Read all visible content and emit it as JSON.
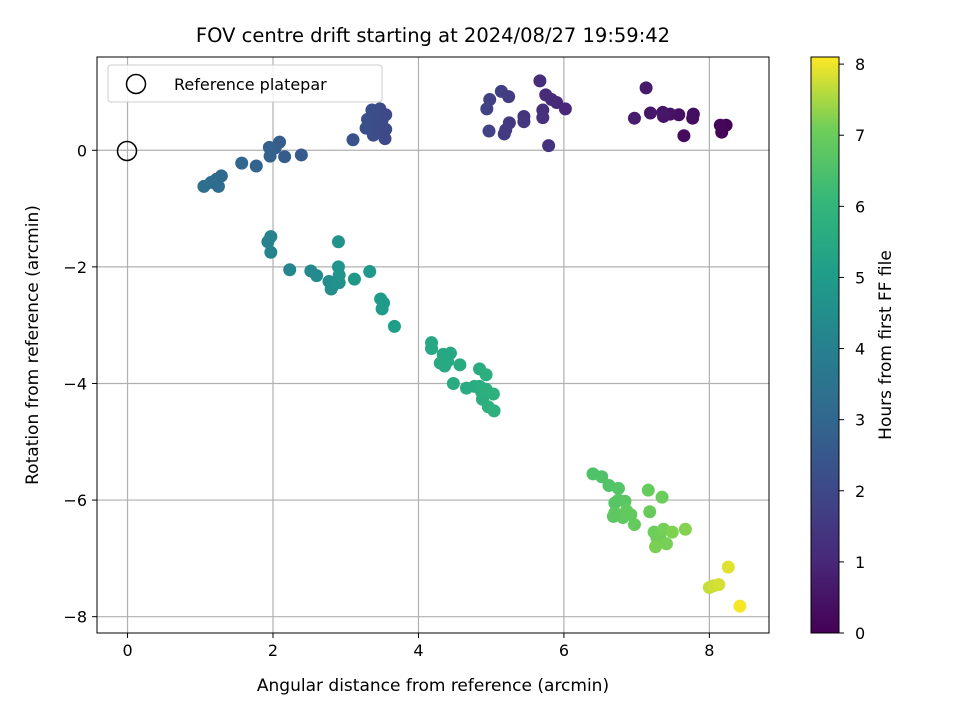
{
  "chart_data": {
    "type": "scatter",
    "title": "FOV centre drift starting at 2024/08/27 19:59:42",
    "xlabel": "Angular distance from reference (arcmin)",
    "ylabel": "Rotation from reference (arcmin)",
    "xlim": [
      -0.42,
      8.82
    ],
    "ylim": [
      -8.28,
      1.6
    ],
    "xticks": [
      0,
      2,
      4,
      6,
      8
    ],
    "yticks": [
      -8,
      -6,
      -4,
      -2,
      0
    ],
    "grid": true,
    "legend": {
      "placement": "top-left",
      "entries": [
        "Reference platepar"
      ]
    },
    "reference": {
      "x": 0,
      "y": 0
    },
    "colorbar": {
      "label": "Hours from first FF file",
      "colormap": "viridis",
      "range": [
        0,
        8.1
      ],
      "ticks": [
        0,
        1,
        2,
        3,
        4,
        5,
        6,
        7,
        8
      ]
    },
    "points": [
      {
        "x": 8.23,
        "y": 0.43,
        "h": 0.05
      },
      {
        "x": 8.17,
        "y": 0.31,
        "h": 0.1
      },
      {
        "x": 8.15,
        "y": 0.43,
        "h": 0.15
      },
      {
        "x": 7.65,
        "y": 0.25,
        "h": 0.25
      },
      {
        "x": 7.77,
        "y": 0.55,
        "h": 0.3
      },
      {
        "x": 7.78,
        "y": 0.62,
        "h": 0.35
      },
      {
        "x": 7.58,
        "y": 0.61,
        "h": 0.4
      },
      {
        "x": 7.46,
        "y": 0.62,
        "h": 0.45
      },
      {
        "x": 7.37,
        "y": 0.58,
        "h": 0.5
      },
      {
        "x": 7.36,
        "y": 0.65,
        "h": 0.55
      },
      {
        "x": 7.19,
        "y": 0.64,
        "h": 0.6
      },
      {
        "x": 7.13,
        "y": 1.07,
        "h": 0.65
      },
      {
        "x": 6.97,
        "y": 0.55,
        "h": 0.7
      },
      {
        "x": 6.02,
        "y": 0.71,
        "h": 1.0
      },
      {
        "x": 5.9,
        "y": 0.82,
        "h": 1.05
      },
      {
        "x": 5.83,
        "y": 0.87,
        "h": 1.1
      },
      {
        "x": 5.75,
        "y": 0.95,
        "h": 1.15
      },
      {
        "x": 5.67,
        "y": 1.19,
        "h": 1.2
      },
      {
        "x": 5.71,
        "y": 0.69,
        "h": 1.25
      },
      {
        "x": 5.71,
        "y": 0.56,
        "h": 1.3
      },
      {
        "x": 5.79,
        "y": 0.08,
        "h": 1.35
      },
      {
        "x": 5.45,
        "y": 0.58,
        "h": 1.4
      },
      {
        "x": 5.45,
        "y": 0.49,
        "h": 1.45
      },
      {
        "x": 5.25,
        "y": 0.47,
        "h": 1.5
      },
      {
        "x": 5.2,
        "y": 0.35,
        "h": 1.55
      },
      {
        "x": 5.18,
        "y": 0.28,
        "h": 1.6
      },
      {
        "x": 5.24,
        "y": 0.92,
        "h": 1.65
      },
      {
        "x": 5.14,
        "y": 1.01,
        "h": 1.7
      },
      {
        "x": 4.98,
        "y": 0.87,
        "h": 1.75
      },
      {
        "x": 4.94,
        "y": 0.71,
        "h": 1.8
      },
      {
        "x": 4.97,
        "y": 0.33,
        "h": 1.85
      },
      {
        "x": 3.55,
        "y": 0.61,
        "h": 2.0
      },
      {
        "x": 3.55,
        "y": 0.36,
        "h": 2.02
      },
      {
        "x": 3.54,
        "y": 0.2,
        "h": 2.04
      },
      {
        "x": 3.5,
        "y": 0.52,
        "h": 2.06
      },
      {
        "x": 3.47,
        "y": 0.71,
        "h": 2.08
      },
      {
        "x": 3.45,
        "y": 0.43,
        "h": 2.1
      },
      {
        "x": 3.43,
        "y": 0.33,
        "h": 2.12
      },
      {
        "x": 3.4,
        "y": 0.6,
        "h": 2.14
      },
      {
        "x": 3.38,
        "y": 0.26,
        "h": 2.16
      },
      {
        "x": 3.36,
        "y": 0.69,
        "h": 2.18
      },
      {
        "x": 3.33,
        "y": 0.46,
        "h": 2.2
      },
      {
        "x": 3.3,
        "y": 0.53,
        "h": 2.22
      },
      {
        "x": 3.28,
        "y": 0.38,
        "h": 2.24
      },
      {
        "x": 3.1,
        "y": 0.18,
        "h": 2.3
      },
      {
        "x": 2.39,
        "y": -0.08,
        "h": 2.6
      },
      {
        "x": 2.16,
        "y": -0.11,
        "h": 2.65
      },
      {
        "x": 2.09,
        "y": 0.14,
        "h": 2.7
      },
      {
        "x": 2.03,
        "y": 0.04,
        "h": 2.75
      },
      {
        "x": 1.95,
        "y": 0.05,
        "h": 2.8
      },
      {
        "x": 1.96,
        "y": -0.1,
        "h": 2.85
      },
      {
        "x": 1.77,
        "y": -0.27,
        "h": 2.95
      },
      {
        "x": 1.57,
        "y": -0.22,
        "h": 3.0
      },
      {
        "x": 1.29,
        "y": -0.44,
        "h": 3.1
      },
      {
        "x": 1.22,
        "y": -0.5,
        "h": 3.15
      },
      {
        "x": 1.25,
        "y": -0.62,
        "h": 3.2
      },
      {
        "x": 1.15,
        "y": -0.55,
        "h": 3.25
      },
      {
        "x": 1.05,
        "y": -0.62,
        "h": 3.3
      },
      {
        "x": 1.97,
        "y": -1.48,
        "h": 4.0
      },
      {
        "x": 1.93,
        "y": -1.57,
        "h": 4.05
      },
      {
        "x": 1.97,
        "y": -1.75,
        "h": 4.1
      },
      {
        "x": 2.23,
        "y": -2.05,
        "h": 4.2
      },
      {
        "x": 2.52,
        "y": -2.07,
        "h": 4.3
      },
      {
        "x": 2.6,
        "y": -2.15,
        "h": 4.35
      },
      {
        "x": 2.77,
        "y": -2.25,
        "h": 4.4
      },
      {
        "x": 2.82,
        "y": -2.33,
        "h": 4.45
      },
      {
        "x": 2.8,
        "y": -2.38,
        "h": 4.5
      },
      {
        "x": 2.85,
        "y": -2.28,
        "h": 4.55
      },
      {
        "x": 2.91,
        "y": -2.27,
        "h": 4.6
      },
      {
        "x": 2.9,
        "y": -1.57,
        "h": 4.65
      },
      {
        "x": 2.9,
        "y": -2.0,
        "h": 4.7
      },
      {
        "x": 2.91,
        "y": -2.14,
        "h": 4.75
      },
      {
        "x": 3.12,
        "y": -2.21,
        "h": 4.8
      },
      {
        "x": 3.33,
        "y": -2.08,
        "h": 4.85
      },
      {
        "x": 3.48,
        "y": -2.55,
        "h": 4.9
      },
      {
        "x": 3.52,
        "y": -2.62,
        "h": 4.95
      },
      {
        "x": 3.5,
        "y": -2.72,
        "h": 5.0
      },
      {
        "x": 3.67,
        "y": -3.02,
        "h": 5.05
      },
      {
        "x": 4.18,
        "y": -3.3,
        "h": 5.4
      },
      {
        "x": 4.18,
        "y": -3.4,
        "h": 5.42
      },
      {
        "x": 4.34,
        "y": -3.5,
        "h": 5.44
      },
      {
        "x": 4.4,
        "y": -3.62,
        "h": 5.46
      },
      {
        "x": 4.44,
        "y": -3.48,
        "h": 5.48
      },
      {
        "x": 4.3,
        "y": -3.65,
        "h": 5.5
      },
      {
        "x": 4.36,
        "y": -3.7,
        "h": 5.52
      },
      {
        "x": 4.57,
        "y": -3.68,
        "h": 5.54
      },
      {
        "x": 4.48,
        "y": -4.0,
        "h": 5.56
      },
      {
        "x": 4.66,
        "y": -4.08,
        "h": 5.58
      },
      {
        "x": 4.77,
        "y": -4.05,
        "h": 5.6
      },
      {
        "x": 4.84,
        "y": -3.75,
        "h": 5.62
      },
      {
        "x": 4.84,
        "y": -4.05,
        "h": 5.64
      },
      {
        "x": 4.87,
        "y": -4.15,
        "h": 5.66
      },
      {
        "x": 4.88,
        "y": -4.27,
        "h": 5.68
      },
      {
        "x": 4.93,
        "y": -3.85,
        "h": 5.7
      },
      {
        "x": 4.93,
        "y": -4.1,
        "h": 5.72
      },
      {
        "x": 4.96,
        "y": -4.4,
        "h": 5.74
      },
      {
        "x": 5.03,
        "y": -4.18,
        "h": 5.76
      },
      {
        "x": 5.04,
        "y": -4.47,
        "h": 5.78
      },
      {
        "x": 6.4,
        "y": -5.55,
        "h": 6.55
      },
      {
        "x": 6.52,
        "y": -5.6,
        "h": 6.58
      },
      {
        "x": 6.62,
        "y": -5.75,
        "h": 6.61
      },
      {
        "x": 6.75,
        "y": -5.8,
        "h": 6.64
      },
      {
        "x": 6.7,
        "y": -6.05,
        "h": 6.67
      },
      {
        "x": 6.75,
        "y": -6.0,
        "h": 6.7
      },
      {
        "x": 6.84,
        "y": -6.02,
        "h": 6.73
      },
      {
        "x": 6.7,
        "y": -6.22,
        "h": 6.76
      },
      {
        "x": 6.68,
        "y": -6.28,
        "h": 6.79
      },
      {
        "x": 6.81,
        "y": -6.3,
        "h": 6.82
      },
      {
        "x": 6.86,
        "y": -6.18,
        "h": 6.85
      },
      {
        "x": 6.92,
        "y": -6.25,
        "h": 6.88
      },
      {
        "x": 6.97,
        "y": -6.42,
        "h": 6.91
      },
      {
        "x": 7.16,
        "y": -5.83,
        "h": 6.94
      },
      {
        "x": 7.18,
        "y": -6.2,
        "h": 6.97
      },
      {
        "x": 7.35,
        "y": -5.95,
        "h": 7.0
      },
      {
        "x": 7.24,
        "y": -6.55,
        "h": 7.03
      },
      {
        "x": 7.28,
        "y": -6.65,
        "h": 7.06
      },
      {
        "x": 7.32,
        "y": -6.6,
        "h": 7.09
      },
      {
        "x": 7.37,
        "y": -6.5,
        "h": 7.12
      },
      {
        "x": 7.41,
        "y": -6.75,
        "h": 7.15
      },
      {
        "x": 7.26,
        "y": -6.8,
        "h": 7.18
      },
      {
        "x": 7.49,
        "y": -6.55,
        "h": 7.21
      },
      {
        "x": 7.67,
        "y": -6.5,
        "h": 7.24
      },
      {
        "x": 8.0,
        "y": -7.5,
        "h": 7.7
      },
      {
        "x": 8.06,
        "y": -7.47,
        "h": 7.75
      },
      {
        "x": 8.13,
        "y": -7.45,
        "h": 7.8
      },
      {
        "x": 8.26,
        "y": -7.15,
        "h": 7.9
      },
      {
        "x": 8.42,
        "y": -7.82,
        "h": 8.05
      }
    ]
  }
}
